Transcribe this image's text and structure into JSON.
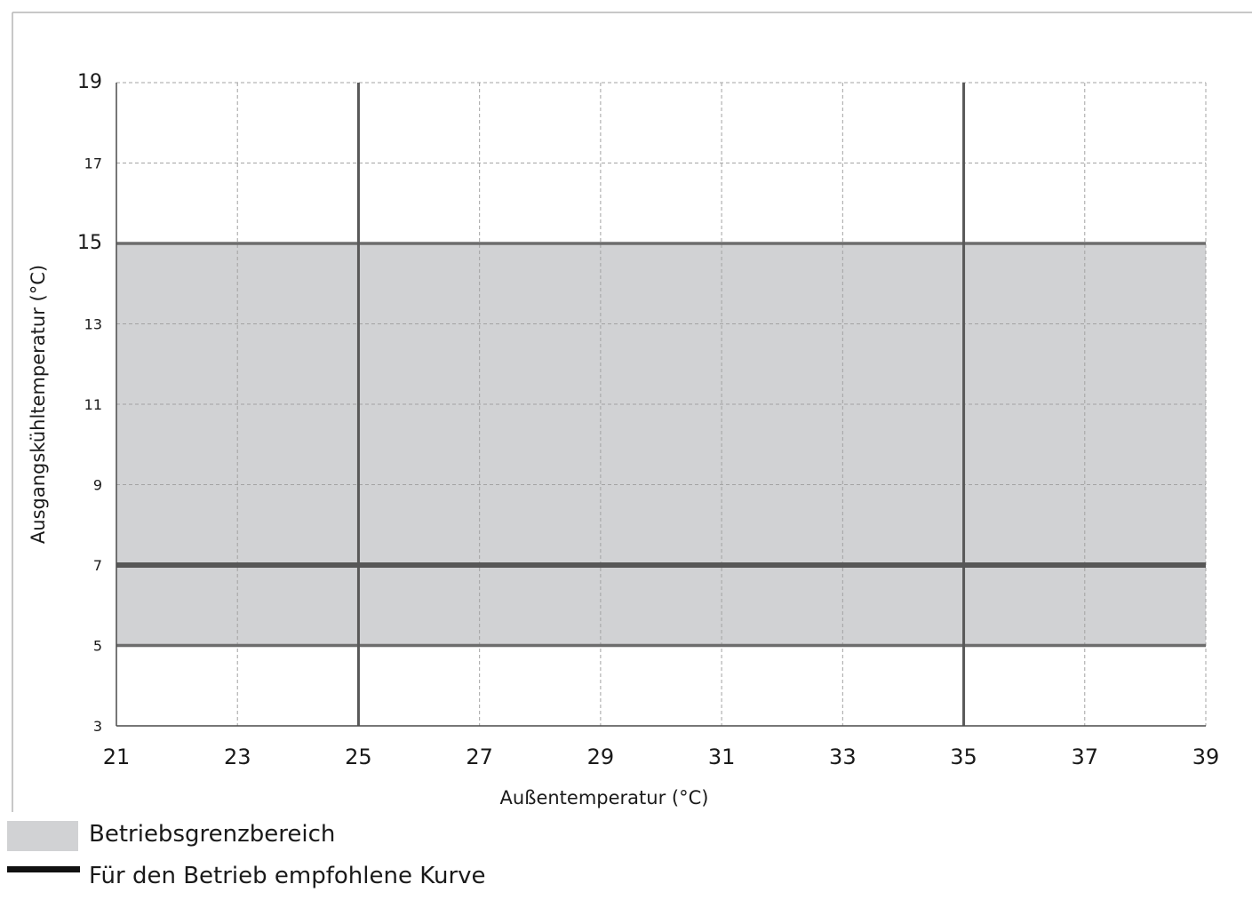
{
  "chart_data": {
    "type": "area",
    "xlabel": "Außentemperatur (°C)",
    "ylabel": "Ausgangskühltemperatur (°C)",
    "xlim": [
      21,
      39
    ],
    "ylim": [
      3,
      19
    ],
    "x_ticks": [
      "21",
      "23",
      "25",
      "27",
      "29",
      "31",
      "33",
      "35",
      "37",
      "39"
    ],
    "y_ticks": [
      "3",
      "5",
      "7",
      "9",
      "11",
      "13",
      "15",
      "17",
      "19"
    ],
    "grid": true,
    "series": [
      {
        "name": "Betriebsgrenzbereich",
        "kind": "area",
        "x": [
          21,
          39
        ],
        "y_lower": [
          5,
          5
        ],
        "y_upper": [
          15,
          15
        ],
        "color": "#d1d2d4"
      },
      {
        "name": "Für den Betrieb empfohlene Kurve",
        "kind": "line",
        "x": [
          21,
          39
        ],
        "y": [
          7,
          7
        ],
        "color": "#575757"
      }
    ],
    "boundary_lines": {
      "vertical_x": [
        25,
        35
      ],
      "horizontal_y": [
        5,
        15
      ],
      "color": "#6d6d6d"
    },
    "legend_position": "bottom-left"
  },
  "legend": {
    "items": [
      {
        "label": "Betriebsgrenzbereich",
        "swatch": "area",
        "color": "#d1d2d4"
      },
      {
        "label": "Für den Betrieb empfohlene Kurve",
        "swatch": "line",
        "color": "#111111"
      }
    ]
  }
}
